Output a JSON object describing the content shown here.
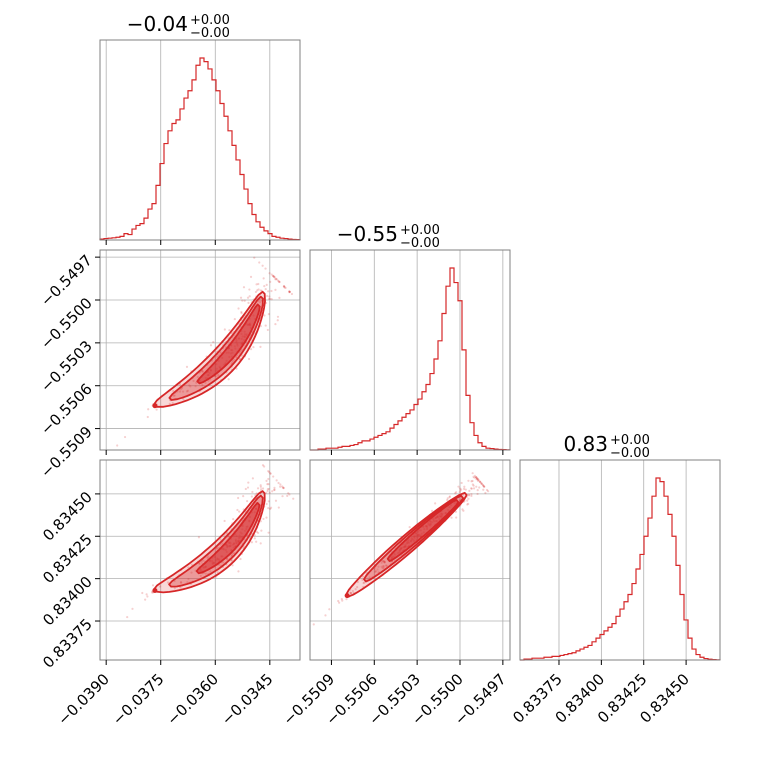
{
  "colors": {
    "line": "#d62728",
    "grid": "#b0b0b0",
    "frame": "#808080",
    "background": "#ffffff"
  },
  "chart_data": {
    "type": "corner",
    "params": [
      {
        "title_value": "−0.04",
        "title_plus": "+0.00",
        "title_minus": "−0.00",
        "range": [
          -0.03917,
          -0.03367
        ]
      },
      {
        "title_value": "−0.55",
        "title_plus": "+0.00",
        "title_minus": "−0.00",
        "range": [
          -0.55105,
          -0.54965
        ]
      },
      {
        "title_value": "0.83",
        "title_plus": "+0.00",
        "title_minus": "−0.00",
        "range": [
          0.83352,
          0.8347
        ]
      }
    ],
    "x_ticks": [
      {
        "values": [
          -0.039,
          -0.0375,
          -0.036,
          -0.0345
        ],
        "labels": [
          "−0.0390",
          "−0.0375",
          "−0.0360",
          "−0.0345"
        ]
      },
      {
        "values": [
          -0.5509,
          -0.5506,
          -0.5503,
          -0.55,
          -0.5497
        ],
        "labels": [
          "−0.5509",
          "−0.5506",
          "−0.5503",
          "−0.5500",
          "−0.5497"
        ]
      },
      {
        "values": [
          0.83375,
          0.834,
          0.83425,
          0.8345
        ],
        "labels": [
          "0.83375",
          "0.83400",
          "0.83425",
          "0.83450"
        ]
      }
    ],
    "y_ticks": [
      null,
      {
        "values": [
          -0.5497,
          -0.55,
          -0.5503,
          -0.5506,
          -0.5509
        ],
        "labels": [
          "−0.5497",
          "−0.5500",
          "−0.5503",
          "−0.5506",
          "−0.5509"
        ]
      },
      {
        "values": [
          0.8345,
          0.83425,
          0.834,
          0.83375
        ],
        "labels": [
          "0.83450",
          "0.83425",
          "0.83400",
          "0.83375"
        ]
      }
    ],
    "histograms": [
      {
        "bins": 50,
        "counts": [
          0.005,
          0.008,
          0.01,
          0.012,
          0.015,
          0.02,
          0.035,
          0.03,
          0.06,
          0.08,
          0.09,
          0.12,
          0.17,
          0.2,
          0.3,
          0.42,
          0.53,
          0.6,
          0.64,
          0.66,
          0.72,
          0.78,
          0.82,
          0.88,
          0.96,
          1.0,
          0.98,
          0.94,
          0.88,
          0.82,
          0.75,
          0.68,
          0.6,
          0.52,
          0.44,
          0.36,
          0.28,
          0.2,
          0.14,
          0.1,
          0.07,
          0.05,
          0.035,
          0.02,
          0.015,
          0.01,
          0.008,
          0.005,
          0.003,
          0.002
        ]
      },
      {
        "bins": 50,
        "counts": [
          0.0,
          0.0,
          0.005,
          0.005,
          0.01,
          0.01,
          0.01,
          0.015,
          0.02,
          0.02,
          0.025,
          0.03,
          0.04,
          0.05,
          0.05,
          0.06,
          0.07,
          0.08,
          0.09,
          0.1,
          0.12,
          0.14,
          0.16,
          0.18,
          0.2,
          0.22,
          0.25,
          0.28,
          0.32,
          0.36,
          0.42,
          0.5,
          0.6,
          0.75,
          0.9,
          1.0,
          0.92,
          0.82,
          0.55,
          0.3,
          0.15,
          0.08,
          0.04,
          0.02,
          0.01,
          0.008,
          0.005,
          0.003,
          0.002,
          0.001
        ]
      },
      {
        "bins": 50,
        "counts": [
          0.0,
          0.005,
          0.005,
          0.01,
          0.01,
          0.01,
          0.015,
          0.015,
          0.02,
          0.02,
          0.025,
          0.03,
          0.035,
          0.04,
          0.05,
          0.06,
          0.07,
          0.08,
          0.1,
          0.12,
          0.14,
          0.16,
          0.18,
          0.2,
          0.24,
          0.28,
          0.32,
          0.36,
          0.42,
          0.5,
          0.58,
          0.68,
          0.78,
          0.9,
          1.0,
          0.98,
          0.9,
          0.8,
          0.68,
          0.52,
          0.36,
          0.22,
          0.12,
          0.06,
          0.03,
          0.015,
          0.008,
          0.004,
          0.002,
          0.001
        ]
      }
    ],
    "pairs": [
      {
        "row": 1,
        "col": 0,
        "shape": "curved-band",
        "from": [
          -0.03766,
          -0.55074
        ],
        "to": [
          -0.03467,
          -0.54995
        ]
      },
      {
        "row": 2,
        "col": 0,
        "shape": "curved-band",
        "from": [
          -0.03766,
          0.83393
        ],
        "to": [
          -0.03467,
          0.83451
        ]
      },
      {
        "row": 2,
        "col": 1,
        "shape": "linear-band",
        "from": [
          -0.55079,
          0.8339
        ],
        "to": [
          -0.54996,
          0.8345
        ]
      }
    ]
  }
}
